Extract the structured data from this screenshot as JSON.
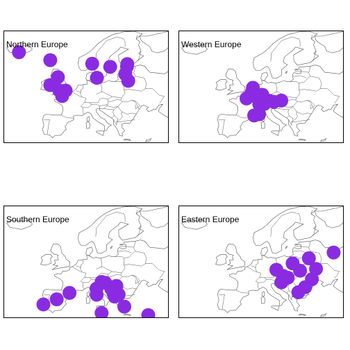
{
  "map_style": {
    "land_stroke": "#555555",
    "point_color": "#8a2be2"
  },
  "panels": [
    {
      "title": "Northern Europe",
      "points": [
        {
          "lon": -19.0,
          "lat": 64.1
        },
        {
          "lon": -6.3,
          "lat": 61.5
        },
        {
          "lon": 10.7,
          "lat": 60.3
        },
        {
          "lon": 18.0,
          "lat": 59.3
        },
        {
          "lon": 24.9,
          "lat": 60.2
        },
        {
          "lon": 24.1,
          "lat": 56.9
        },
        {
          "lon": 24.8,
          "lat": 59.4
        },
        {
          "lon": 25.3,
          "lat": 54.7
        },
        {
          "lon": 12.6,
          "lat": 55.7
        },
        {
          "lon": -3.2,
          "lat": 55.9
        },
        {
          "lon": -6.3,
          "lat": 53.3
        },
        {
          "lon": -0.1,
          "lat": 51.5
        },
        {
          "lon": -2.6,
          "lat": 51.5
        },
        {
          "lon": -1.5,
          "lat": 49.7
        }
      ]
    },
    {
      "title": "Western Europe",
      "points": [
        {
          "lon": 2.3,
          "lat": 48.9
        },
        {
          "lon": 4.4,
          "lat": 50.8
        },
        {
          "lon": 4.9,
          "lat": 52.4
        },
        {
          "lon": 6.1,
          "lat": 49.6
        },
        {
          "lon": 8.7,
          "lat": 50.1
        },
        {
          "lon": 7.5,
          "lat": 47.0
        },
        {
          "lon": 9.5,
          "lat": 47.1
        },
        {
          "lon": 11.6,
          "lat": 48.1
        },
        {
          "lon": 13.4,
          "lat": 47.8
        },
        {
          "lon": 16.4,
          "lat": 48.2
        },
        {
          "lon": 5.4,
          "lat": 43.3
        },
        {
          "lon": 7.4,
          "lat": 43.7
        }
      ]
    },
    {
      "title": "Southern Europe",
      "points": [
        {
          "lon": -9.1,
          "lat": 38.7
        },
        {
          "lon": -3.7,
          "lat": 40.4
        },
        {
          "lon": 1.5,
          "lat": 42.5
        },
        {
          "lon": 12.5,
          "lat": 41.9
        },
        {
          "lon": 12.4,
          "lat": 43.9
        },
        {
          "lon": 14.5,
          "lat": 46.1
        },
        {
          "lon": 16.0,
          "lat": 45.8
        },
        {
          "lon": 18.4,
          "lat": 43.9
        },
        {
          "lon": 20.5,
          "lat": 44.8
        },
        {
          "lon": 19.3,
          "lat": 42.4
        },
        {
          "lon": 21.4,
          "lat": 42.0
        },
        {
          "lon": 19.8,
          "lat": 41.3
        },
        {
          "lon": 14.5,
          "lat": 35.9
        },
        {
          "lon": 23.7,
          "lat": 38.0
        },
        {
          "lon": 33.4,
          "lat": 35.2
        }
      ]
    },
    {
      "title": "Eastern Europe",
      "points": [
        {
          "lon": 37.6,
          "lat": 55.8
        },
        {
          "lon": 27.6,
          "lat": 53.9
        },
        {
          "lon": 21.0,
          "lat": 52.2
        },
        {
          "lon": 30.5,
          "lat": 50.4
        },
        {
          "lon": 14.4,
          "lat": 50.1
        },
        {
          "lon": 17.1,
          "lat": 48.1
        },
        {
          "lon": 19.0,
          "lat": 47.5
        },
        {
          "lon": 28.8,
          "lat": 47.0
        },
        {
          "lon": 26.1,
          "lat": 44.4
        },
        {
          "lon": 23.3,
          "lat": 42.7
        },
        {
          "lon": 24.0,
          "lat": 49.8
        },
        {
          "lon": 16.5,
          "lat": 46.0
        }
      ]
    }
  ]
}
